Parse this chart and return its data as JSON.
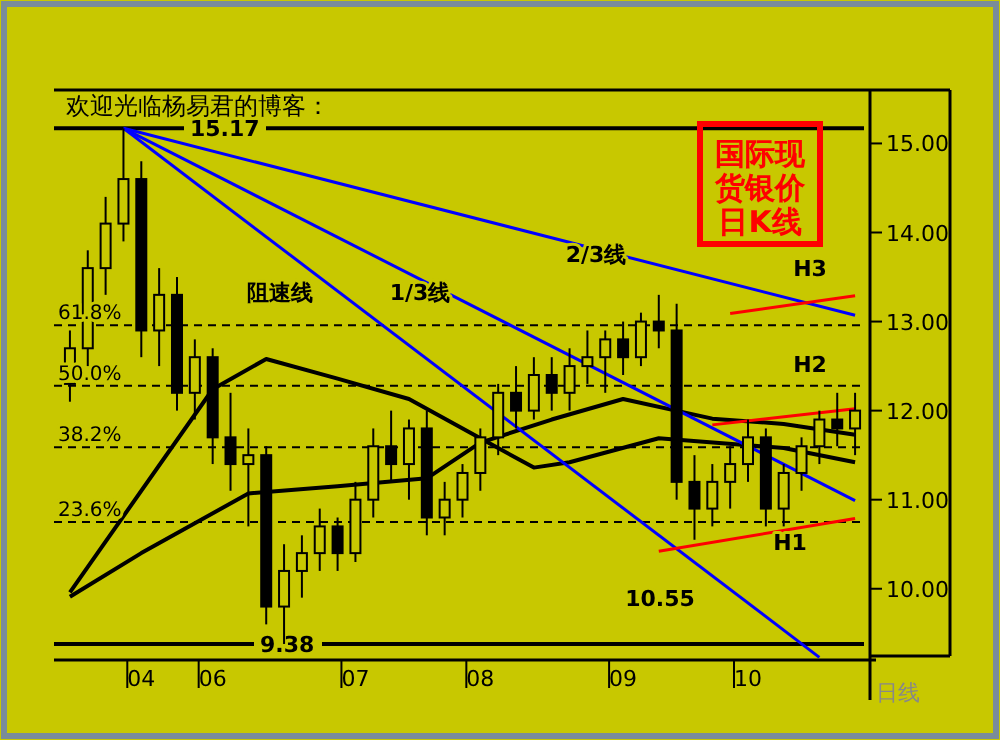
{
  "chart_data": {
    "type": "candlestick",
    "title": "欢迎光临杨易君的博客：",
    "categories": [
      null,
      null,
      null,
      null,
      "04",
      null,
      null,
      null,
      "06",
      null,
      null,
      null,
      null,
      null,
      null,
      null,
      "07",
      null,
      null,
      null,
      null,
      null,
      null,
      "08",
      null,
      null,
      null,
      null,
      null,
      null,
      null,
      "09",
      null,
      null,
      null,
      null,
      null,
      null,
      "10",
      null,
      null,
      null,
      null,
      null,
      null
    ],
    "ohlc": [
      [
        12.3,
        12.9,
        12.1,
        12.7
      ],
      [
        12.7,
        13.8,
        12.5,
        13.6
      ],
      [
        13.6,
        14.4,
        13.3,
        14.1
      ],
      [
        14.1,
        15.17,
        13.9,
        14.6
      ],
      [
        14.6,
        14.8,
        12.6,
        12.9
      ],
      [
        12.9,
        13.6,
        12.5,
        13.3
      ],
      [
        13.3,
        13.5,
        12.0,
        12.2
      ],
      [
        12.2,
        12.8,
        11.9,
        12.6
      ],
      [
        12.6,
        12.7,
        11.4,
        11.7
      ],
      [
        11.7,
        12.2,
        11.1,
        11.4
      ],
      [
        11.4,
        11.8,
        10.7,
        11.5
      ],
      [
        11.5,
        11.6,
        9.6,
        9.8
      ],
      [
        9.8,
        10.5,
        9.38,
        10.2
      ],
      [
        10.2,
        10.6,
        9.9,
        10.4
      ],
      [
        10.4,
        10.9,
        10.2,
        10.7
      ],
      [
        10.7,
        10.8,
        10.2,
        10.4
      ],
      [
        10.4,
        11.2,
        10.3,
        11.0
      ],
      [
        11.0,
        11.8,
        10.8,
        11.6
      ],
      [
        11.6,
        12.0,
        11.2,
        11.4
      ],
      [
        11.4,
        11.9,
        11.0,
        11.8
      ],
      [
        11.8,
        12.0,
        10.6,
        10.8
      ],
      [
        10.8,
        11.2,
        10.6,
        11.0
      ],
      [
        11.0,
        11.4,
        10.8,
        11.3
      ],
      [
        11.3,
        11.8,
        11.1,
        11.7
      ],
      [
        11.7,
        12.3,
        11.5,
        12.2
      ],
      [
        12.2,
        12.5,
        11.8,
        12.0
      ],
      [
        12.0,
        12.6,
        11.9,
        12.4
      ],
      [
        12.4,
        12.6,
        12.0,
        12.2
      ],
      [
        12.2,
        12.7,
        12.0,
        12.5
      ],
      [
        12.5,
        12.9,
        12.3,
        12.6
      ],
      [
        12.6,
        12.9,
        12.2,
        12.8
      ],
      [
        12.8,
        13.0,
        12.4,
        12.6
      ],
      [
        12.6,
        13.1,
        12.5,
        13.0
      ],
      [
        13.0,
        13.3,
        12.7,
        12.9
      ],
      [
        12.9,
        13.2,
        11.0,
        11.2
      ],
      [
        11.2,
        11.5,
        10.55,
        10.9
      ],
      [
        10.9,
        11.4,
        10.7,
        11.2
      ],
      [
        11.2,
        11.6,
        10.9,
        11.4
      ],
      [
        11.4,
        11.9,
        11.2,
        11.7
      ],
      [
        11.7,
        11.8,
        10.7,
        10.9
      ],
      [
        10.9,
        11.4,
        10.7,
        11.3
      ],
      [
        11.3,
        11.7,
        11.1,
        11.6
      ],
      [
        11.6,
        12.0,
        11.4,
        11.9
      ],
      [
        11.9,
        12.2,
        11.6,
        11.8
      ],
      [
        11.8,
        12.2,
        11.5,
        12.0
      ]
    ],
    "color": "#000000",
    "series": [
      {
        "type": "line",
        "color": "#000000",
        "values": [
          9.96,
          null,
          null,
          null,
          null,
          null,
          null,
          null,
          12.24,
          null,
          null,
          12.58,
          null,
          null,
          null,
          12.36,
          null,
          null,
          null,
          12.13,
          null,
          null,
          null,
          11.69,
          null,
          null,
          11.36,
          null,
          11.42,
          null,
          null,
          null,
          null,
          11.69,
          null,
          null,
          null,
          null,
          null,
          null,
          11.58,
          null,
          null,
          null,
          11.42
        ]
      },
      {
        "type": "line",
        "color": "#000000",
        "values": [
          9.91,
          null,
          null,
          null,
          10.4,
          null,
          null,
          null,
          null,
          null,
          11.07,
          null,
          null,
          null,
          null,
          11.15,
          null,
          null,
          null,
          null,
          11.24,
          null,
          null,
          11.64,
          null,
          null,
          null,
          11.9,
          null,
          null,
          null,
          12.13,
          null,
          null,
          null,
          null,
          11.91,
          null,
          null,
          null,
          11.85,
          null,
          null,
          null,
          11.73
        ]
      },
      {
        "type": "line",
        "color": "#0000ff",
        "values": [
          null,
          null,
          null,
          15.17,
          null,
          null,
          null,
          null,
          null,
          null,
          null,
          null,
          null,
          null,
          null,
          null,
          null,
          null,
          null,
          null,
          null,
          null,
          null,
          null,
          null,
          null,
          null,
          null,
          null,
          null,
          null,
          null,
          null,
          null,
          null,
          null,
          null,
          null,
          null,
          null,
          null,
          null,
          9.23,
          null,
          null
        ]
      },
      {
        "type": "line",
        "color": "#0000ff",
        "values": [
          null,
          null,
          null,
          15.17,
          null,
          null,
          null,
          null,
          null,
          null,
          null,
          null,
          null,
          null,
          null,
          null,
          null,
          null,
          null,
          null,
          null,
          null,
          null,
          null,
          null,
          null,
          null,
          null,
          null,
          null,
          null,
          null,
          null,
          null,
          null,
          null,
          null,
          null,
          null,
          null,
          null,
          null,
          null,
          null,
          10.99
        ]
      },
      {
        "type": "line",
        "color": "#0000ff",
        "values": [
          null,
          null,
          null,
          15.17,
          null,
          null,
          null,
          null,
          null,
          null,
          null,
          null,
          null,
          null,
          null,
          null,
          null,
          null,
          null,
          null,
          null,
          null,
          null,
          null,
          null,
          null,
          null,
          null,
          null,
          null,
          null,
          null,
          null,
          null,
          null,
          null,
          null,
          null,
          null,
          null,
          null,
          null,
          null,
          null,
          13.07
        ]
      },
      {
        "type": "line",
        "color": "#ff0000",
        "values": [
          null,
          null,
          null,
          null,
          null,
          null,
          null,
          null,
          null,
          null,
          null,
          null,
          null,
          null,
          null,
          null,
          null,
          null,
          null,
          null,
          null,
          null,
          null,
          null,
          null,
          null,
          null,
          null,
          null,
          null,
          null,
          null,
          null,
          10.42,
          null,
          null,
          null,
          null,
          null,
          null,
          null,
          null,
          null,
          null,
          10.79
        ]
      },
      {
        "type": "line",
        "color": "#ff0000",
        "values": [
          null,
          null,
          null,
          null,
          null,
          null,
          null,
          null,
          null,
          null,
          null,
          null,
          null,
          null,
          null,
          null,
          null,
          null,
          null,
          null,
          null,
          null,
          null,
          null,
          null,
          null,
          null,
          null,
          null,
          null,
          null,
          null,
          null,
          null,
          null,
          null,
          11.84,
          null,
          null,
          null,
          null,
          null,
          null,
          null,
          12.02
        ]
      },
      {
        "type": "line",
        "color": "#ff0000",
        "values": [
          null,
          null,
          null,
          null,
          null,
          null,
          null,
          null,
          null,
          null,
          null,
          null,
          null,
          null,
          null,
          null,
          null,
          null,
          null,
          null,
          null,
          null,
          null,
          null,
          null,
          null,
          null,
          null,
          null,
          null,
          null,
          null,
          null,
          null,
          null,
          null,
          null,
          13.09,
          null,
          null,
          null,
          null,
          null,
          null,
          13.29
        ]
      }
    ],
    "ylim": [
      9.2,
      15.6
    ],
    "yticks": [
      {
        "value": 10,
        "label": "10.00"
      },
      {
        "value": 11,
        "label": "11.00"
      },
      {
        "value": 12,
        "label": "12.00"
      },
      {
        "value": 13,
        "label": "13.00"
      },
      {
        "value": 14,
        "label": "14.00"
      },
      {
        "value": 15,
        "label": "15.00"
      }
    ],
    "ref_lines": [
      {
        "axis": "y",
        "value": 15.17,
        "label": "15.17",
        "line_style": "solid"
      },
      {
        "axis": "y",
        "value": 9.38,
        "label": "9.38",
        "line_style": "solid"
      },
      {
        "axis": "y",
        "value": 12.96,
        "line_style": "dashed"
      },
      {
        "axis": "y",
        "value": 12.28,
        "line_style": "dashed"
      },
      {
        "axis": "y",
        "value": 11.59,
        "line_style": "dashed"
      },
      {
        "axis": "y",
        "value": 10.75,
        "line_style": "dashed"
      }
    ],
    "annotations": [
      {
        "text": "61.8%",
        "x": "04",
        "y": 12.96
      },
      {
        "text": "50.0%",
        "x": "04",
        "y": 12.28
      },
      {
        "text": "38.2%",
        "x": "04",
        "y": 11.59
      },
      {
        "text": "23.6%",
        "x": "04",
        "y": 10.75
      },
      "阻速线",
      "1/3线",
      "2/3线",
      "H1",
      "H2",
      "H3",
      "10.55",
      "国际现货银价日K线",
      "日线"
    ]
  }
}
